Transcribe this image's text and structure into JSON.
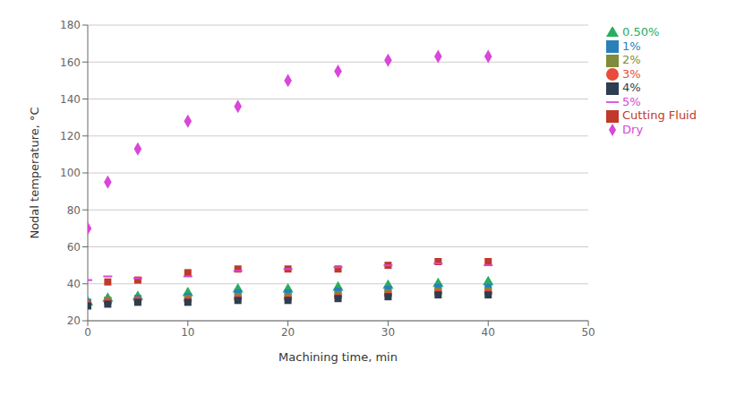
{
  "chart_data": {
    "type": "scatter",
    "xlabel": "Machining time, min",
    "ylabel": "Nodal temperature, °C",
    "x": [
      0,
      2,
      5,
      10,
      15,
      20,
      25,
      30,
      35,
      40
    ],
    "series": [
      {
        "name": "Dry",
        "color": "#d946d9",
        "marker": "diamond",
        "values": [
          70,
          95,
          113,
          128,
          136,
          150,
          155,
          161,
          163,
          163
        ]
      },
      {
        "name": "Cutting Fluid",
        "color": "#c0392b",
        "marker": "square",
        "values": [
          29,
          41,
          42,
          46,
          48,
          48,
          48,
          50,
          52,
          52
        ]
      },
      {
        "name": "0.50%",
        "color": "#27ae60",
        "marker": "triangle",
        "values": [
          30,
          32,
          33,
          35,
          37,
          37,
          38,
          39,
          40,
          41
        ]
      },
      {
        "name": "1%",
        "color": "#2980b9",
        "marker": "square",
        "values": [
          30,
          31,
          32,
          33,
          35,
          35,
          36,
          37,
          38,
          38
        ]
      },
      {
        "name": "2%",
        "color": "#7f8c3a",
        "marker": "square",
        "values": [
          29,
          31,
          31,
          32,
          33,
          33,
          34,
          35,
          36,
          36
        ]
      },
      {
        "name": "3%",
        "color": "#e74c3c",
        "marker": "circle",
        "values": [
          29,
          30,
          31,
          31,
          32,
          32,
          33,
          34,
          35,
          35
        ]
      },
      {
        "name": "4%",
        "color": "#2c3e50",
        "marker": "square",
        "values": [
          28,
          29,
          30,
          30,
          31,
          31,
          32,
          33,
          34,
          34
        ]
      },
      {
        "name": "5%",
        "color": "#d946d9",
        "marker": "hline",
        "values": [
          42,
          44,
          43,
          44,
          47,
          48,
          49,
          50,
          51,
          50
        ]
      }
    ],
    "xlim": [
      0,
      50
    ],
    "ylim": [
      20,
      180
    ],
    "xticks": [
      0,
      10,
      20,
      30,
      40,
      50
    ],
    "yticks": [
      20,
      40,
      60,
      80,
      100,
      120,
      140,
      160,
      180
    ],
    "grid": true,
    "legend": "right"
  }
}
